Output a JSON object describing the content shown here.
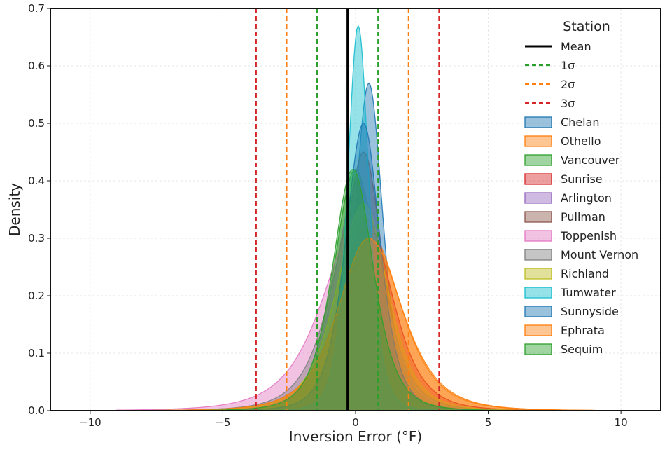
{
  "chart_data": {
    "type": "area",
    "xlabel": "Inversion Error (°F)",
    "ylabel": "Density",
    "xlim": [
      -11.5,
      11.5
    ],
    "ylim": [
      0,
      0.7
    ],
    "x_ticks": [
      -10,
      -5,
      0,
      5,
      10
    ],
    "x_tick_labels": [
      "−10",
      "−5",
      "0",
      "5",
      "10"
    ],
    "y_ticks": [
      0.0,
      0.1,
      0.2,
      0.3,
      0.4,
      0.5,
      0.6,
      0.7
    ],
    "y_tick_labels": [
      "0.0",
      "0.1",
      "0.2",
      "0.3",
      "0.4",
      "0.5",
      "0.6",
      "0.7"
    ],
    "grid": true,
    "legend_position": "top-right",
    "legend_title": "Station",
    "reference_lines": [
      {
        "name": "Mean",
        "style": "solid",
        "color": "#000000",
        "x": [
          -0.3
        ]
      },
      {
        "name": "1σ",
        "style": "dashed",
        "color": "#2ca02c",
        "x": [
          -1.45,
          0.85
        ]
      },
      {
        "name": "2σ",
        "style": "dashed",
        "color": "#ff7f0e",
        "x": [
          -2.6,
          2.0
        ]
      },
      {
        "name": "3σ",
        "style": "dashed",
        "color": "#d62728",
        "x": [
          -3.75,
          3.15
        ]
      }
    ],
    "series": [
      {
        "name": "Chelan",
        "color": "#1f77b4",
        "peak_x": 0.5,
        "peak_density": 0.57,
        "left_spread": 0.55,
        "right_spread": 0.55
      },
      {
        "name": "Othello",
        "color": "#ff7f0e",
        "peak_x": 0.5,
        "peak_density": 0.31,
        "left_spread": 1.2,
        "right_spread": 1.25
      },
      {
        "name": "Vancouver",
        "color": "#2ca02c",
        "peak_x": 0.0,
        "peak_density": 0.42,
        "left_spread": 0.85,
        "right_spread": 0.8
      },
      {
        "name": "Sunrise",
        "color": "#d62728",
        "peak_x": 0.4,
        "peak_density": 0.33,
        "left_spread": 1.05,
        "right_spread": 1.05
      },
      {
        "name": "Arlington",
        "color": "#9467bd",
        "peak_x": 0.1,
        "peak_density": 0.4,
        "left_spread": 0.9,
        "right_spread": 0.85
      },
      {
        "name": "Pullman",
        "color": "#8c564b",
        "peak_x": 0.3,
        "peak_density": 0.45,
        "left_spread": 0.75,
        "right_spread": 0.75
      },
      {
        "name": "Toppenish",
        "color": "#e377c2",
        "peak_x": 0.3,
        "peak_density": 0.35,
        "left_spread": 1.5,
        "right_spread": 0.85
      },
      {
        "name": "Mount Vernon",
        "color": "#7f7f7f",
        "peak_x": 0.2,
        "peak_density": 0.38,
        "left_spread": 1.1,
        "right_spread": 0.9
      },
      {
        "name": "Richland",
        "color": "#bcbd22",
        "peak_x": 0.3,
        "peak_density": 0.36,
        "left_spread": 1.05,
        "right_spread": 0.95
      },
      {
        "name": "Tumwater",
        "color": "#17becf",
        "peak_x": 0.1,
        "peak_density": 0.67,
        "left_spread": 0.42,
        "right_spread": 0.42
      },
      {
        "name": "Sunnyside",
        "color": "#1f77b4",
        "peak_x": 0.3,
        "peak_density": 0.5,
        "left_spread": 0.7,
        "right_spread": 0.65
      },
      {
        "name": "Ephrata",
        "color": "#ff7f0e",
        "peak_x": 0.5,
        "peak_density": 0.3,
        "left_spread": 1.2,
        "right_spread": 1.3
      },
      {
        "name": "Sequim",
        "color": "#2ca02c",
        "peak_x": -0.1,
        "peak_density": 0.42,
        "left_spread": 0.8,
        "right_spread": 0.8
      }
    ]
  }
}
